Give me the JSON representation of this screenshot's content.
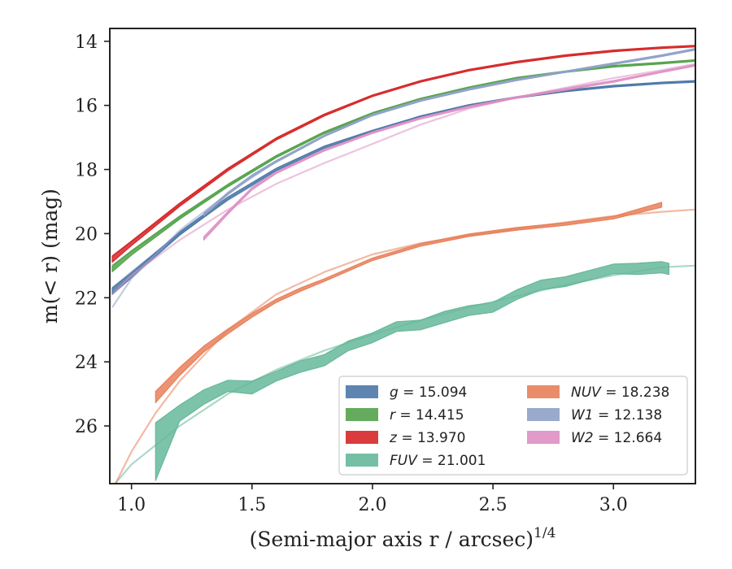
{
  "chart_data": {
    "type": "line",
    "xlabel": "(Semi-major axis r / arcsec)",
    "xlabel_exponent": "1/4",
    "ylabel": "m(< r) (mag)",
    "xlim": [
      0.91,
      3.34
    ],
    "ylim": [
      27.8,
      13.6
    ],
    "y_inverted": true,
    "xticks": [
      1.0,
      1.5,
      2.0,
      2.5,
      3.0
    ],
    "xtick_labels": [
      "1.0",
      "1.5",
      "2.0",
      "2.5",
      "3.0"
    ],
    "yticks": [
      14,
      16,
      18,
      20,
      22,
      24,
      26
    ],
    "ytick_labels": [
      "14",
      "16",
      "18",
      "20",
      "22",
      "24",
      "26"
    ],
    "grid": false,
    "legend_position": "lower-right",
    "series": [
      {
        "name": "g = 15.094",
        "band": "g",
        "mag": "15.094",
        "color": "#4c78a8",
        "band_x": [
          0.92,
          1.0,
          1.2,
          1.4,
          1.6,
          1.8,
          2.0,
          2.2,
          2.4,
          2.6,
          2.8,
          3.0,
          3.2,
          3.34
        ],
        "band_y": [
          21.8,
          21.3,
          20.0,
          18.9,
          18.0,
          17.3,
          16.8,
          16.35,
          16.0,
          15.75,
          15.55,
          15.4,
          15.3,
          15.25
        ],
        "band_w": [
          0.2,
          0.15,
          0.1,
          0.08,
          0.07,
          0.06,
          0.05,
          0.05,
          0.05,
          0.05,
          0.05,
          0.05,
          0.05,
          0.05
        ],
        "model_x": [
          0.92,
          1.0,
          1.2,
          1.4,
          1.6,
          1.8,
          2.0,
          2.2,
          2.4,
          2.6,
          2.8,
          3.0,
          3.2,
          3.34
        ],
        "model_y": [
          21.7,
          21.2,
          20.0,
          18.95,
          18.05,
          17.35,
          16.8,
          16.35,
          16.0,
          15.75,
          15.55,
          15.4,
          15.3,
          15.25
        ]
      },
      {
        "name": "r = 14.415",
        "band": "r",
        "mag": "14.415",
        "color": "#54a24b",
        "band_x": [
          0.92,
          1.0,
          1.2,
          1.4,
          1.6,
          1.8,
          2.0,
          2.2,
          2.4,
          2.6,
          2.8,
          3.0,
          3.2,
          3.34
        ],
        "band_y": [
          21.1,
          20.6,
          19.5,
          18.5,
          17.6,
          16.85,
          16.25,
          15.8,
          15.45,
          15.15,
          14.95,
          14.78,
          14.68,
          14.6
        ],
        "band_w": [
          0.18,
          0.14,
          0.1,
          0.08,
          0.07,
          0.06,
          0.05,
          0.05,
          0.05,
          0.05,
          0.05,
          0.05,
          0.05,
          0.05
        ],
        "model_x": [
          0.92,
          1.0,
          1.2,
          1.4,
          1.6,
          1.8,
          2.0,
          2.2,
          2.4,
          2.6,
          2.8,
          3.0,
          3.2,
          3.34
        ],
        "model_y": [
          21.0,
          20.55,
          19.5,
          18.5,
          17.6,
          16.85,
          16.25,
          15.8,
          15.45,
          15.15,
          14.95,
          14.78,
          14.68,
          14.6
        ]
      },
      {
        "name": "z = 13.970",
        "band": "z",
        "mag": "13.970",
        "color": "#d62728",
        "band_x": [
          0.92,
          1.0,
          1.2,
          1.4,
          1.6,
          1.8,
          2.0,
          2.2,
          2.4,
          2.6,
          2.8,
          3.0,
          3.2,
          3.34
        ],
        "band_y": [
          20.8,
          20.3,
          19.1,
          18.0,
          17.05,
          16.3,
          15.7,
          15.25,
          14.9,
          14.65,
          14.45,
          14.3,
          14.2,
          14.15
        ],
        "band_w": [
          0.18,
          0.14,
          0.1,
          0.08,
          0.07,
          0.06,
          0.05,
          0.05,
          0.05,
          0.05,
          0.05,
          0.05,
          0.05,
          0.05
        ],
        "model_x": [
          0.92,
          1.0,
          1.2,
          1.4,
          1.6,
          1.8,
          2.0,
          2.2,
          2.4,
          2.6,
          2.8,
          3.0,
          3.2,
          3.34
        ],
        "model_y": [
          20.7,
          20.25,
          19.1,
          18.0,
          17.05,
          16.3,
          15.7,
          15.25,
          14.9,
          14.65,
          14.45,
          14.3,
          14.2,
          14.15
        ]
      },
      {
        "name": "FUV = 21.001",
        "band": "FUV",
        "mag": "21.001",
        "color": "#66b89b",
        "band_x": [
          1.1,
          1.2,
          1.3,
          1.4,
          1.5,
          1.6,
          1.7,
          1.8,
          1.9,
          2.0,
          2.1,
          2.2,
          2.3,
          2.4,
          2.5,
          2.6,
          2.7,
          2.8,
          2.9,
          3.0,
          3.1,
          3.2,
          3.23
        ],
        "band_y": [
          26.8,
          25.6,
          25.1,
          24.75,
          24.8,
          24.45,
          24.15,
          23.95,
          23.5,
          23.25,
          22.9,
          22.85,
          22.6,
          22.4,
          22.3,
          21.9,
          21.6,
          21.5,
          21.3,
          21.1,
          21.1,
          21.05,
          21.1
        ],
        "band_w": [
          1.8,
          0.5,
          0.45,
          0.35,
          0.4,
          0.3,
          0.35,
          0.35,
          0.3,
          0.3,
          0.3,
          0.3,
          0.35,
          0.3,
          0.3,
          0.3,
          0.3,
          0.3,
          0.3,
          0.3,
          0.35,
          0.35,
          0.35
        ],
        "model_x": [
          0.92,
          1.0,
          1.2,
          1.4,
          1.6,
          1.8,
          2.0,
          2.2,
          2.4,
          2.6,
          2.8,
          3.0,
          3.2,
          3.34
        ],
        "model_y": [
          27.9,
          27.2,
          26.0,
          25.0,
          24.25,
          23.65,
          23.15,
          22.7,
          22.3,
          21.95,
          21.6,
          21.3,
          21.05,
          21.0
        ]
      },
      {
        "name": "NUV = 18.238",
        "band": "NUV",
        "mag": "18.238",
        "color": "#e8805a",
        "band_x": [
          1.1,
          1.2,
          1.3,
          1.4,
          1.5,
          1.6,
          1.7,
          1.8,
          2.0,
          2.2,
          2.4,
          2.6,
          2.8,
          3.0,
          3.2
        ],
        "band_y": [
          25.1,
          24.3,
          23.6,
          23.05,
          22.55,
          22.1,
          21.75,
          21.45,
          20.8,
          20.35,
          20.05,
          19.85,
          19.7,
          19.5,
          19.1
        ],
        "band_w": [
          0.35,
          0.25,
          0.18,
          0.15,
          0.12,
          0.1,
          0.1,
          0.08,
          0.08,
          0.08,
          0.08,
          0.08,
          0.08,
          0.08,
          0.15
        ],
        "model_x": [
          0.92,
          1.0,
          1.1,
          1.2,
          1.4,
          1.6,
          1.8,
          2.0,
          2.2,
          2.4,
          2.6,
          2.8,
          3.0,
          3.2,
          3.34
        ],
        "model_y": [
          28.0,
          26.8,
          25.6,
          24.6,
          23.0,
          21.9,
          21.2,
          20.65,
          20.3,
          20.05,
          19.85,
          19.65,
          19.45,
          19.32,
          19.25
        ]
      },
      {
        "name": "W1 = 12.138",
        "band": "W1",
        "mag": "12.138",
        "color": "#8fa1c7",
        "band_x": [
          1.3,
          1.4,
          1.5,
          1.6,
          1.8,
          2.0,
          2.2,
          2.4,
          2.6,
          2.8,
          3.0,
          3.2,
          3.34
        ],
        "band_y": [
          19.4,
          18.75,
          18.2,
          17.75,
          16.95,
          16.3,
          15.85,
          15.5,
          15.2,
          14.95,
          14.7,
          14.45,
          14.25
        ],
        "band_w": [
          0.08,
          0.07,
          0.06,
          0.06,
          0.05,
          0.05,
          0.05,
          0.05,
          0.05,
          0.05,
          0.05,
          0.05,
          0.05
        ],
        "model_x": [
          0.92,
          1.0,
          1.2,
          1.4,
          1.6,
          1.8,
          2.0,
          2.2,
          2.4,
          2.6,
          2.8,
          3.0,
          3.2,
          3.34
        ],
        "model_y": [
          22.3,
          21.4,
          19.9,
          18.75,
          17.75,
          16.95,
          16.3,
          15.85,
          15.5,
          15.2,
          14.95,
          14.7,
          14.45,
          14.25
        ]
      },
      {
        "name": "W2 = 12.664",
        "band": "W2",
        "mag": "12.664",
        "color": "#de8fc4",
        "band_x": [
          1.3,
          1.4,
          1.5,
          1.6,
          1.8,
          2.0,
          2.2,
          2.4,
          2.6,
          2.8,
          3.0,
          3.2,
          3.34
        ],
        "band_y": [
          20.15,
          19.35,
          18.6,
          18.1,
          17.4,
          16.85,
          16.4,
          16.05,
          15.75,
          15.5,
          15.25,
          14.95,
          14.75
        ],
        "band_w": [
          0.1,
          0.08,
          0.07,
          0.06,
          0.05,
          0.05,
          0.05,
          0.05,
          0.05,
          0.05,
          0.05,
          0.05,
          0.05
        ],
        "model_x": [
          0.92,
          1.0,
          1.2,
          1.4,
          1.6,
          1.8,
          2.0,
          2.2,
          2.4,
          2.6,
          2.8,
          3.0,
          3.2,
          3.34
        ],
        "model_y": [
          21.9,
          21.3,
          20.2,
          19.25,
          18.45,
          17.8,
          17.2,
          16.6,
          16.1,
          15.75,
          15.45,
          15.15,
          14.9,
          14.7
        ]
      }
    ],
    "legend": [
      {
        "band": "g",
        "mag": "15.094",
        "color": "#4c78a8"
      },
      {
        "band": "r",
        "mag": "14.415",
        "color": "#54a24b"
      },
      {
        "band": "z",
        "mag": "13.970",
        "color": "#d62728"
      },
      {
        "band": "FUV",
        "mag": "21.001",
        "color": "#66b89b"
      },
      {
        "band": "NUV",
        "mag": "18.238",
        "color": "#e8805a"
      },
      {
        "band": "W1",
        "mag": "12.138",
        "color": "#8fa1c7"
      },
      {
        "band": "W2",
        "mag": "12.664",
        "color": "#de8fc4"
      }
    ]
  }
}
